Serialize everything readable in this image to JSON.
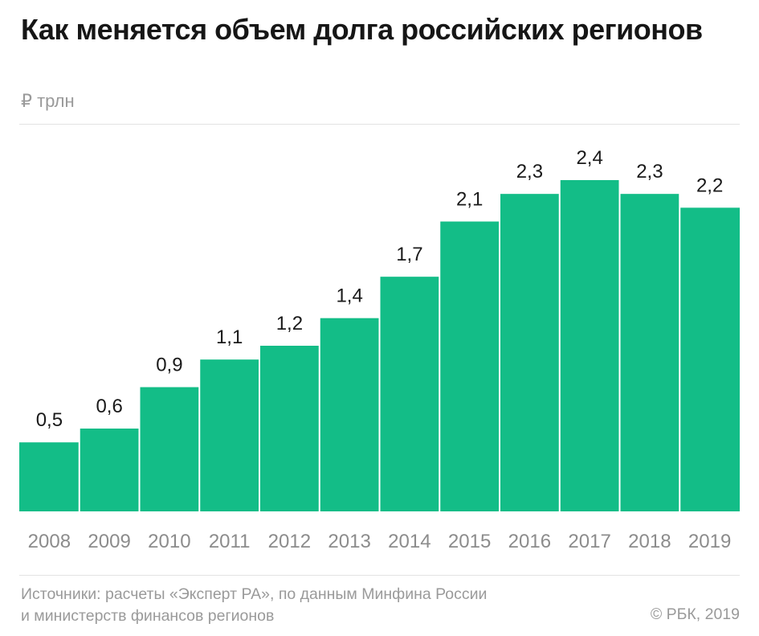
{
  "header": {
    "title": "Как меняется объем долга российских регионов",
    "unit": "₽ трлн"
  },
  "footer": {
    "source_line1": "Источники: расчеты «Эксперт РА», по данным Минфина России",
    "source_line2": "и министерств финансов регионов",
    "copyright": "© РБК, 2019"
  },
  "colors": {
    "bar": "#13bd87",
    "bar_gap": "#ffffff",
    "value_label": "#1a1a1a",
    "tick_label": "#8c8c8c"
  },
  "chart_data": {
    "type": "bar",
    "title": "Как меняется объем долга российских регионов",
    "ylabel": "₽ трлн",
    "xlabel": "",
    "categories": [
      "2008",
      "2009",
      "2010",
      "2011",
      "2012",
      "2013",
      "2014",
      "2015",
      "2016",
      "2017",
      "2018",
      "2019"
    ],
    "values": [
      0.5,
      0.6,
      0.9,
      1.1,
      1.2,
      1.4,
      1.7,
      2.1,
      2.3,
      2.4,
      2.3,
      2.2
    ],
    "value_labels": [
      "0,5",
      "0,6",
      "0,9",
      "1,1",
      "1,2",
      "1,4",
      "1,7",
      "2,1",
      "2,3",
      "2,4",
      "2,3",
      "2,2"
    ],
    "ylim": [
      0,
      2.4
    ],
    "grid": false,
    "legend": "none"
  }
}
